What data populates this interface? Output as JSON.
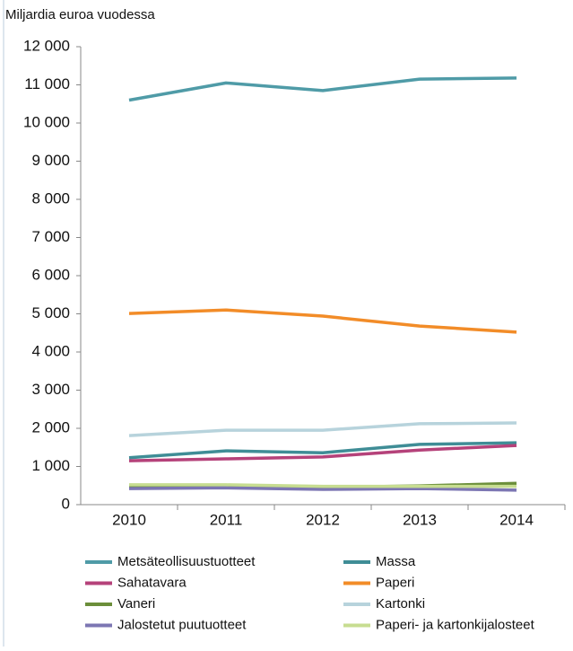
{
  "chart_data": {
    "type": "line",
    "title": "Miljardia euroa vuodessa",
    "categories": [
      "2010",
      "2011",
      "2012",
      "2013",
      "2014"
    ],
    "series": [
      {
        "name": "Metsäteollisuustuotteet",
        "color": "#4f9ba7",
        "values": [
          10600,
          11050,
          10850,
          11150,
          11180
        ]
      },
      {
        "name": "Massa",
        "color": "#3f8d96",
        "values": [
          1230,
          1410,
          1360,
          1580,
          1620
        ]
      },
      {
        "name": "Sahatavara",
        "color": "#b5427a",
        "values": [
          1150,
          1200,
          1250,
          1430,
          1550
        ]
      },
      {
        "name": "Paperi",
        "color": "#f28c28",
        "values": [
          5010,
          5100,
          4940,
          4680,
          4520
        ]
      },
      {
        "name": "Vaneri",
        "color": "#6b8e3a",
        "values": [
          450,
          470,
          450,
          490,
          560
        ]
      },
      {
        "name": "Kartonki",
        "color": "#b7d3dc",
        "values": [
          1810,
          1950,
          1950,
          2120,
          2140
        ]
      },
      {
        "name": "Jalostetut puutuotteet",
        "color": "#7c76b3",
        "values": [
          420,
          440,
          400,
          420,
          380
        ]
      },
      {
        "name": "Paperi- ja kartonkijalosteet",
        "color": "#c7dd91",
        "values": [
          520,
          520,
          480,
          480,
          480
        ]
      }
    ],
    "ylim": [
      0,
      12000
    ],
    "yticks": [
      0,
      {
        "value": 1000,
        "label": "1 000"
      },
      {
        "value": 2000,
        "label": "2 000"
      },
      {
        "value": 3000,
        "label": "3 000"
      },
      {
        "value": 4000,
        "label": "4 000"
      },
      {
        "value": 5000,
        "label": "5 000"
      },
      {
        "value": 6000,
        "label": "6 000"
      },
      {
        "value": 7000,
        "label": "7 000"
      },
      {
        "value": 8000,
        "label": "8 000"
      },
      {
        "value": 9000,
        "label": "9 000"
      },
      {
        "value": 10000,
        "label": "10 000"
      },
      {
        "value": 11000,
        "label": "11 000"
      },
      {
        "value": 12000,
        "label": "12 000"
      }
    ],
    "grid": false
  }
}
